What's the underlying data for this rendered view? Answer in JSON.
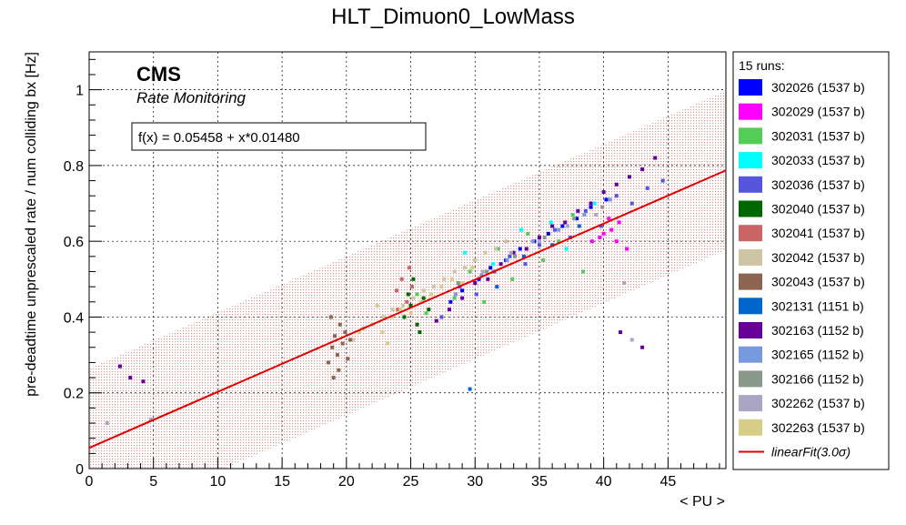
{
  "chart_data": {
    "type": "scatter",
    "title": "HLT_Dimuon0_LowMass",
    "xlabel": "< PU >",
    "ylabel": "pre-deadtime unprescaled rate / num colliding bx [Hz]",
    "xlim": [
      0,
      49.5
    ],
    "ylim": [
      0,
      1.1
    ],
    "x_ticks": [
      0,
      5,
      10,
      15,
      20,
      25,
      30,
      35,
      40,
      45
    ],
    "y_ticks": [
      0,
      0.2,
      0.4,
      0.6,
      0.8,
      1
    ],
    "grid": true,
    "experiment_label": "CMS",
    "sub_label": "Rate Monitoring",
    "fit": {
      "label": "f(x) = 0.05458 + x*0.01480",
      "intercept": 0.05458,
      "slope": 0.0148,
      "band_halfwidth": 0.21,
      "color": "#e00000",
      "legend_label": "linearFit(3.0σ)"
    },
    "legend_title": "15 runs:",
    "legend_placement": "right",
    "series": [
      {
        "name": "302026 (1537 b)",
        "color": "#0000ff",
        "points": [
          [
            28.1,
            0.44
          ],
          [
            29.0,
            0.47
          ],
          [
            30.3,
            0.5
          ],
          [
            31.2,
            0.53
          ],
          [
            32.4,
            0.55
          ],
          [
            33.5,
            0.58
          ],
          [
            34.6,
            0.6
          ],
          [
            35.7,
            0.62
          ],
          [
            36.8,
            0.64
          ],
          [
            37.9,
            0.66
          ],
          [
            39.0,
            0.69
          ],
          [
            40.2,
            0.71
          ]
        ]
      },
      {
        "name": "302029 (1537 b)",
        "color": "#ff00ff",
        "points": [
          [
            39.1,
            0.6
          ],
          [
            40.0,
            0.62
          ],
          [
            40.6,
            0.63
          ],
          [
            41.2,
            0.65
          ],
          [
            41.8,
            0.58
          ],
          [
            40.4,
            0.66
          ],
          [
            39.7,
            0.61
          ],
          [
            41.0,
            0.6
          ]
        ]
      },
      {
        "name": "302031 (1537 b)",
        "color": "#55cc55",
        "points": [
          [
            25.5,
            0.46
          ],
          [
            26.2,
            0.41
          ],
          [
            28.4,
            0.45
          ],
          [
            29.6,
            0.52
          ],
          [
            30.7,
            0.44
          ],
          [
            31.8,
            0.58
          ],
          [
            32.9,
            0.5
          ],
          [
            34.1,
            0.62
          ],
          [
            35.3,
            0.55
          ],
          [
            36.5,
            0.6
          ],
          [
            37.6,
            0.67
          ],
          [
            38.4,
            0.52
          ]
        ]
      },
      {
        "name": "302033 (1537 b)",
        "color": "#00ffff",
        "points": [
          [
            29.2,
            0.57
          ],
          [
            31.4,
            0.54
          ],
          [
            33.6,
            0.63
          ],
          [
            35.9,
            0.65
          ],
          [
            37.1,
            0.58
          ],
          [
            39.3,
            0.7
          ]
        ]
      },
      {
        "name": "302036 (1537 b)",
        "color": "#5555dd",
        "points": [
          [
            27.4,
            0.4
          ],
          [
            28.8,
            0.48
          ],
          [
            30.1,
            0.46
          ],
          [
            31.5,
            0.52
          ],
          [
            32.7,
            0.56
          ],
          [
            33.9,
            0.54
          ],
          [
            35.0,
            0.59
          ],
          [
            36.2,
            0.63
          ],
          [
            37.4,
            0.61
          ],
          [
            38.6,
            0.68
          ],
          [
            39.8,
            0.64
          ],
          [
            41.0,
            0.72
          ],
          [
            42.2,
            0.7
          ],
          [
            43.4,
            0.74
          ],
          [
            44.6,
            0.76
          ]
        ]
      },
      {
        "name": "302040 (1537 b)",
        "color": "#006600",
        "points": [
          [
            24.5,
            0.4
          ],
          [
            25.0,
            0.43
          ],
          [
            25.5,
            0.38
          ],
          [
            26.0,
            0.45
          ],
          [
            25.2,
            0.5
          ],
          [
            24.8,
            0.46
          ],
          [
            26.4,
            0.42
          ],
          [
            25.7,
            0.36
          ]
        ]
      },
      {
        "name": "302041 (1537 b)",
        "color": "#cc6666",
        "points": [
          [
            23.9,
            0.47
          ],
          [
            24.3,
            0.5
          ],
          [
            24.7,
            0.44
          ],
          [
            25.1,
            0.48
          ],
          [
            24.0,
            0.42
          ],
          [
            24.9,
            0.53
          ]
        ]
      },
      {
        "name": "302042 (1537 b)",
        "color": "#cdc5a3",
        "points": [
          [
            20.5,
            0.34
          ],
          [
            21.3,
            0.37
          ],
          [
            22.1,
            0.38
          ],
          [
            22.9,
            0.4
          ],
          [
            23.6,
            0.42
          ],
          [
            24.4,
            0.43
          ],
          [
            25.2,
            0.45
          ],
          [
            26.0,
            0.47
          ],
          [
            26.8,
            0.48
          ],
          [
            27.6,
            0.5
          ],
          [
            28.4,
            0.52
          ],
          [
            29.2,
            0.53
          ],
          [
            30.0,
            0.55
          ],
          [
            30.8,
            0.57
          ],
          [
            31.6,
            0.58
          ],
          [
            32.4,
            0.6
          ]
        ]
      },
      {
        "name": "302043 (1537 b)",
        "color": "#8c6452",
        "points": [
          [
            18.6,
            0.28
          ],
          [
            18.9,
            0.32
          ],
          [
            19.1,
            0.35
          ],
          [
            19.3,
            0.3
          ],
          [
            19.5,
            0.38
          ],
          [
            19.7,
            0.33
          ],
          [
            19.9,
            0.36
          ],
          [
            20.1,
            0.29
          ],
          [
            18.8,
            0.4
          ],
          [
            19.4,
            0.26
          ],
          [
            20.3,
            0.34
          ],
          [
            19.0,
            0.24
          ]
        ]
      },
      {
        "name": "302131 (1151 b)",
        "color": "#0066cc",
        "points": [
          [
            29.6,
            0.21
          ],
          [
            31.7,
            0.48
          ],
          [
            33.8,
            0.56
          ],
          [
            36.0,
            0.59
          ],
          [
            38.1,
            0.64
          ]
        ]
      },
      {
        "name": "302163 (1152 b)",
        "color": "#660099",
        "points": [
          [
            27.0,
            0.39
          ],
          [
            28.0,
            0.42
          ],
          [
            29.0,
            0.45
          ],
          [
            30.0,
            0.49
          ],
          [
            31.0,
            0.5
          ],
          [
            32.0,
            0.54
          ],
          [
            33.0,
            0.57
          ],
          [
            34.0,
            0.58
          ],
          [
            35.0,
            0.61
          ],
          [
            36.0,
            0.64
          ],
          [
            37.0,
            0.65
          ],
          [
            38.0,
            0.68
          ],
          [
            39.0,
            0.7
          ],
          [
            40.0,
            0.73
          ],
          [
            41.0,
            0.75
          ],
          [
            42.0,
            0.77
          ],
          [
            43.0,
            0.79
          ],
          [
            44.0,
            0.82
          ],
          [
            41.3,
            0.36
          ],
          [
            43.0,
            0.32
          ],
          [
            4.2,
            0.23
          ],
          [
            2.4,
            0.27
          ],
          [
            3.2,
            0.24
          ]
        ]
      },
      {
        "name": "302165 (1152 b)",
        "color": "#7799dd",
        "points": [
          [
            28.5,
            0.46
          ],
          [
            30.5,
            0.51
          ],
          [
            32.5,
            0.55
          ],
          [
            34.5,
            0.6
          ],
          [
            36.5,
            0.63
          ],
          [
            38.5,
            0.67
          ],
          [
            40.5,
            0.71
          ]
        ]
      },
      {
        "name": "302166 (1152 b)",
        "color": "#889988",
        "points": [
          [
            28.7,
            0.49
          ],
          [
            30.9,
            0.52
          ],
          [
            33.1,
            0.56
          ],
          [
            35.4,
            0.61
          ],
          [
            37.7,
            0.66
          ],
          [
            39.9,
            0.69
          ]
        ]
      },
      {
        "name": "302262 (1537 b)",
        "color": "#aaa5c3",
        "points": [
          [
            30.6,
            0.52
          ],
          [
            32.8,
            0.57
          ],
          [
            35.0,
            0.6
          ],
          [
            37.2,
            0.64
          ],
          [
            39.4,
            0.67
          ],
          [
            42.2,
            0.34
          ],
          [
            41.6,
            0.49
          ],
          [
            1.4,
            0.12
          ],
          [
            4.8,
            0.13
          ]
        ]
      },
      {
        "name": "302263 (1537 b)",
        "color": "#d6cd88",
        "points": [
          [
            21.0,
            0.36
          ],
          [
            22.0,
            0.38
          ],
          [
            22.8,
            0.36
          ],
          [
            23.5,
            0.4
          ],
          [
            24.2,
            0.42
          ],
          [
            25.0,
            0.41
          ],
          [
            25.8,
            0.44
          ],
          [
            26.6,
            0.46
          ],
          [
            27.4,
            0.48
          ],
          [
            28.2,
            0.5
          ],
          [
            29.0,
            0.49
          ],
          [
            29.8,
            0.53
          ],
          [
            22.4,
            0.43
          ],
          [
            23.2,
            0.33
          ]
        ]
      }
    ]
  }
}
